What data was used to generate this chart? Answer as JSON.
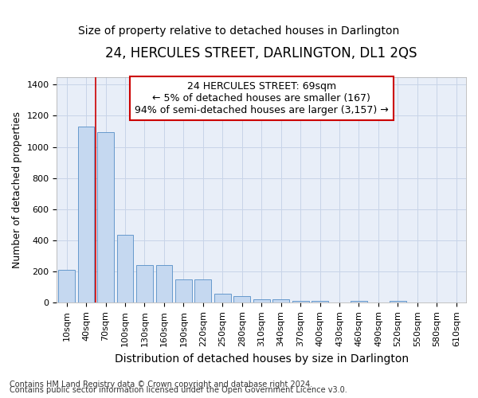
{
  "title": "24, HERCULES STREET, DARLINGTON, DL1 2QS",
  "subtitle": "Size of property relative to detached houses in Darlington",
  "xlabel": "Distribution of detached houses by size in Darlington",
  "ylabel": "Number of detached properties",
  "categories": [
    "10sqm",
    "40sqm",
    "70sqm",
    "100sqm",
    "130sqm",
    "160sqm",
    "190sqm",
    "220sqm",
    "250sqm",
    "280sqm",
    "310sqm",
    "340sqm",
    "370sqm",
    "400sqm",
    "430sqm",
    "460sqm",
    "490sqm",
    "520sqm",
    "550sqm",
    "580sqm",
    "610sqm"
  ],
  "values": [
    210,
    1130,
    1095,
    435,
    240,
    240,
    148,
    148,
    58,
    42,
    25,
    25,
    12,
    12,
    0,
    12,
    0,
    15,
    0,
    0,
    0
  ],
  "bar_color": "#c5d8f0",
  "bar_edge_color": "#6699cc",
  "grid_color": "#c8d4e8",
  "background_color": "#e8eef8",
  "red_line_x": 1.5,
  "annotation_text_line1": "24 HERCULES STREET: 69sqm",
  "annotation_text_line2": "← 5% of detached houses are smaller (167)",
  "annotation_text_line3": "94% of semi-detached houses are larger (3,157) →",
  "annotation_box_facecolor": "#ffffff",
  "annotation_box_edgecolor": "#cc0000",
  "footnote1": "Contains HM Land Registry data © Crown copyright and database right 2024.",
  "footnote2": "Contains public sector information licensed under the Open Government Licence v3.0.",
  "ylim": [
    0,
    1450
  ],
  "yticks": [
    0,
    200,
    400,
    600,
    800,
    1000,
    1200,
    1400
  ],
  "title_fontsize": 12,
  "subtitle_fontsize": 10,
  "ylabel_fontsize": 9,
  "xlabel_fontsize": 10,
  "tick_fontsize": 8,
  "annot_fontsize": 9,
  "footnote_fontsize": 7
}
